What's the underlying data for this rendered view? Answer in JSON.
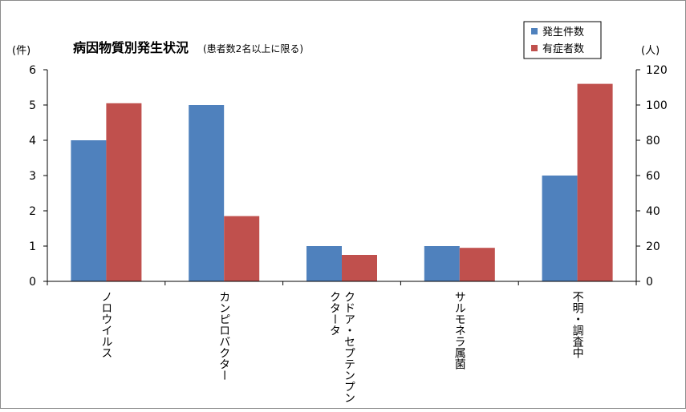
{
  "chart_data": {
    "type": "bar",
    "title": "病因物質別発生状況",
    "subtitle": "(患者数2名以上に限る)",
    "y_left_unit": "(件)",
    "y_right_unit": "(人)",
    "ylim_left": [
      0,
      6
    ],
    "ylim_right": [
      0,
      120
    ],
    "yticks_left": [
      "0",
      "1",
      "2",
      "3",
      "4",
      "5",
      "6"
    ],
    "yticks_right": [
      "0",
      "20",
      "40",
      "60",
      "80",
      "100",
      "120"
    ],
    "grid": false,
    "legend_position": "top-right",
    "categories": [
      [
        "ノロウイルス"
      ],
      [
        "カンピロバクター"
      ],
      [
        "クドア・セプテンプン",
        "クタータ"
      ],
      [
        "サルモネラ属菌"
      ],
      [
        "不明・調査中"
      ]
    ],
    "series": [
      {
        "name": "発生件数",
        "axis": "left",
        "color": "#4f81bd",
        "values": [
          4,
          5,
          1,
          1,
          3
        ]
      },
      {
        "name": "有症者数",
        "axis": "right",
        "color": "#c0504d",
        "values": [
          101,
          37,
          15,
          19,
          112
        ]
      }
    ]
  }
}
